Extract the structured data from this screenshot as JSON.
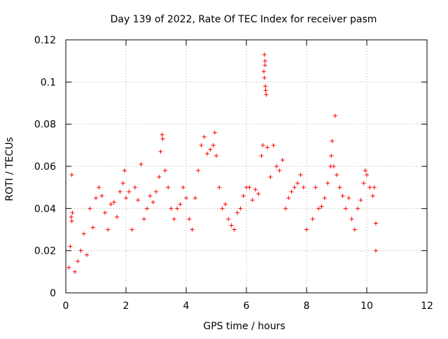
{
  "chart_data": {
    "type": "scatter",
    "title": "Day 139 of 2022, Rate Of TEC Index for receiver pasm",
    "xlabel": "GPS time / hours",
    "ylabel": "ROTI / TECUs",
    "xlim": [
      0,
      12
    ],
    "ylim": [
      0,
      0.12
    ],
    "x_ticks": [
      0,
      2,
      4,
      6,
      8,
      10,
      12
    ],
    "x_tick_labels": [
      "0",
      "2",
      "4",
      "6",
      "8",
      "10",
      "12"
    ],
    "y_ticks": [
      0,
      0.02,
      0.04,
      0.06,
      0.08,
      0.1,
      0.12
    ],
    "y_tick_labels": [
      "0",
      "0.02",
      "0.04",
      "0.06",
      "0.08",
      "0.1",
      "0.12"
    ],
    "grid": true,
    "marker": "+",
    "color": "#ff0000",
    "series": [
      {
        "name": "ROTI",
        "points": [
          [
            0.1,
            0.012
          ],
          [
            0.15,
            0.022
          ],
          [
            0.18,
            0.036
          ],
          [
            0.2,
            0.034
          ],
          [
            0.22,
            0.038
          ],
          [
            0.2,
            0.056
          ],
          [
            0.3,
            0.01
          ],
          [
            0.4,
            0.015
          ],
          [
            0.5,
            0.02
          ],
          [
            0.6,
            0.028
          ],
          [
            0.7,
            0.018
          ],
          [
            0.8,
            0.04
          ],
          [
            0.9,
            0.031
          ],
          [
            1.0,
            0.045
          ],
          [
            1.1,
            0.05
          ],
          [
            1.2,
            0.046
          ],
          [
            1.3,
            0.038
          ],
          [
            1.4,
            0.03
          ],
          [
            1.5,
            0.042
          ],
          [
            1.6,
            0.043
          ],
          [
            1.7,
            0.036
          ],
          [
            1.8,
            0.048
          ],
          [
            1.9,
            0.052
          ],
          [
            1.95,
            0.058
          ],
          [
            2.0,
            0.045
          ],
          [
            2.1,
            0.048
          ],
          [
            2.2,
            0.03
          ],
          [
            2.3,
            0.05
          ],
          [
            2.4,
            0.044
          ],
          [
            2.5,
            0.061
          ],
          [
            2.6,
            0.035
          ],
          [
            2.7,
            0.04
          ],
          [
            2.8,
            0.046
          ],
          [
            2.9,
            0.043
          ],
          [
            3.0,
            0.048
          ],
          [
            3.1,
            0.055
          ],
          [
            3.15,
            0.067
          ],
          [
            3.2,
            0.075
          ],
          [
            3.22,
            0.073
          ],
          [
            3.3,
            0.058
          ],
          [
            3.4,
            0.05
          ],
          [
            3.5,
            0.04
          ],
          [
            3.6,
            0.035
          ],
          [
            3.7,
            0.04
          ],
          [
            3.8,
            0.042
          ],
          [
            3.9,
            0.05
          ],
          [
            4.0,
            0.045
          ],
          [
            4.1,
            0.035
          ],
          [
            4.2,
            0.03
          ],
          [
            4.3,
            0.045
          ],
          [
            4.4,
            0.058
          ],
          [
            4.5,
            0.07
          ],
          [
            4.6,
            0.074
          ],
          [
            4.7,
            0.066
          ],
          [
            4.8,
            0.068
          ],
          [
            4.9,
            0.07
          ],
          [
            4.95,
            0.076
          ],
          [
            5.0,
            0.065
          ],
          [
            5.1,
            0.05
          ],
          [
            5.2,
            0.04
          ],
          [
            5.3,
            0.042
          ],
          [
            5.4,
            0.035
          ],
          [
            5.5,
            0.032
          ],
          [
            5.6,
            0.03
          ],
          [
            5.7,
            0.038
          ],
          [
            5.8,
            0.04
          ],
          [
            5.9,
            0.046
          ],
          [
            6.0,
            0.05
          ],
          [
            6.1,
            0.05
          ],
          [
            6.2,
            0.044
          ],
          [
            6.3,
            0.049
          ],
          [
            6.4,
            0.047
          ],
          [
            6.5,
            0.065
          ],
          [
            6.55,
            0.07
          ],
          [
            6.58,
            0.105
          ],
          [
            6.6,
            0.113
          ],
          [
            6.62,
            0.11
          ],
          [
            6.62,
            0.108
          ],
          [
            6.6,
            0.102
          ],
          [
            6.63,
            0.098
          ],
          [
            6.64,
            0.096
          ],
          [
            6.66,
            0.094
          ],
          [
            6.7,
            0.069
          ],
          [
            6.8,
            0.055
          ],
          [
            6.9,
            0.07
          ],
          [
            7.0,
            0.06
          ],
          [
            7.1,
            0.058
          ],
          [
            7.2,
            0.063
          ],
          [
            7.3,
            0.04
          ],
          [
            7.4,
            0.045
          ],
          [
            7.5,
            0.048
          ],
          [
            7.6,
            0.05
          ],
          [
            7.7,
            0.052
          ],
          [
            7.8,
            0.056
          ],
          [
            7.9,
            0.05
          ],
          [
            8.0,
            0.03
          ],
          [
            8.2,
            0.035
          ],
          [
            8.3,
            0.05
          ],
          [
            8.4,
            0.04
          ],
          [
            8.5,
            0.041
          ],
          [
            8.6,
            0.045
          ],
          [
            8.7,
            0.052
          ],
          [
            8.8,
            0.06
          ],
          [
            8.82,
            0.065
          ],
          [
            8.85,
            0.072
          ],
          [
            8.9,
            0.06
          ],
          [
            8.95,
            0.084
          ],
          [
            9.0,
            0.056
          ],
          [
            9.1,
            0.05
          ],
          [
            9.2,
            0.046
          ],
          [
            9.3,
            0.04
          ],
          [
            9.4,
            0.045
          ],
          [
            9.5,
            0.035
          ],
          [
            9.6,
            0.03
          ],
          [
            9.7,
            0.04
          ],
          [
            9.8,
            0.044
          ],
          [
            9.9,
            0.052
          ],
          [
            9.95,
            0.058
          ],
          [
            10.0,
            0.056
          ],
          [
            10.1,
            0.05
          ],
          [
            10.2,
            0.046
          ],
          [
            10.25,
            0.05
          ],
          [
            10.3,
            0.033
          ],
          [
            10.3,
            0.02
          ]
        ]
      }
    ]
  }
}
